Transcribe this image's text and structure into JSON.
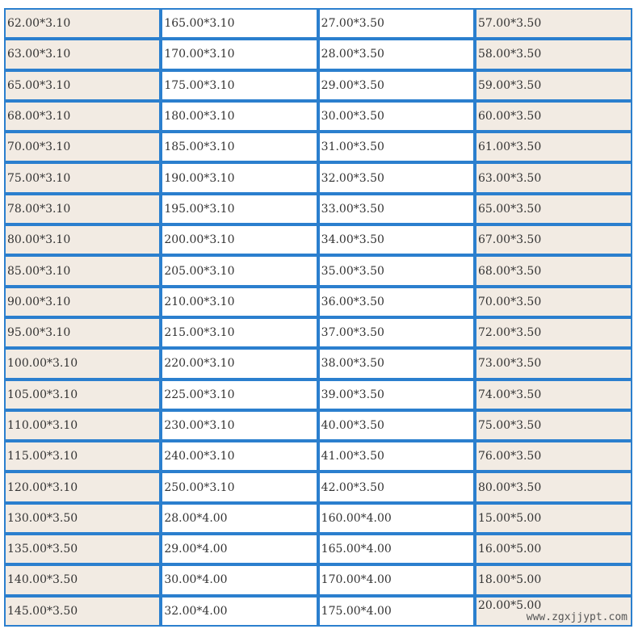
{
  "rows": [
    [
      "62.00*3.10",
      "165.00*3.10",
      "27.00*3.50",
      "57.00*3.50"
    ],
    [
      "63.00*3.10",
      "170.00*3.10",
      "28.00*3.50",
      "58.00*3.50"
    ],
    [
      "65.00*3.10",
      "175.00*3.10",
      "29.00*3.50",
      "59.00*3.50"
    ],
    [
      "68.00*3.10",
      "180.00*3.10",
      "30.00*3.50",
      "60.00*3.50"
    ],
    [
      "70.00*3.10",
      "185.00*3.10",
      "31.00*3.50",
      "61.00*3.50"
    ],
    [
      "75.00*3.10",
      "190.00*3.10",
      "32.00*3.50",
      "63.00*3.50"
    ],
    [
      "78.00*3.10",
      "195.00*3.10",
      "33.00*3.50",
      "65.00*3.50"
    ],
    [
      "80.00*3.10",
      "200.00*3.10",
      "34.00*3.50",
      "67.00*3.50"
    ],
    [
      "85.00*3.10",
      "205.00*3.10",
      "35.00*3.50",
      "68.00*3.50"
    ],
    [
      "90.00*3.10",
      "210.00*3.10",
      "36.00*3.50",
      "70.00*3.50"
    ],
    [
      "95.00*3.10",
      "215.00*3.10",
      "37.00*3.50",
      "72.00*3.50"
    ],
    [
      "100.00*3.10",
      "220.00*3.10",
      "38.00*3.50",
      "73.00*3.50"
    ],
    [
      "105.00*3.10",
      "225.00*3.10",
      "39.00*3.50",
      "74.00*3.50"
    ],
    [
      "110.00*3.10",
      "230.00*3.10",
      "40.00*3.50",
      "75.00*3.50"
    ],
    [
      "115.00*3.10",
      "240.00*3.10",
      "41.00*3.50",
      "76.00*3.50"
    ],
    [
      "120.00*3.10",
      "250.00*3.10",
      "42.00*3.50",
      "80.00*3.50"
    ],
    [
      "130.00*3.50",
      "28.00*4.00",
      "160.00*4.00",
      "15.00*5.00"
    ],
    [
      "135.00*3.50",
      "29.00*4.00",
      "165.00*4.00",
      "16.00*5.00"
    ],
    [
      "140.00*3.50",
      "30.00*4.00",
      "170.00*4.00",
      "18.00*5.00"
    ],
    [
      "145.00*3.50",
      "32.00*4.00",
      "175.00*4.00",
      "20.00*5.00"
    ]
  ],
  "watermark": "www.zgxjjypt.com",
  "colors": {
    "border": "#2b7fce",
    "shaded": "#f2ebe3",
    "plain": "#ffffff"
  }
}
